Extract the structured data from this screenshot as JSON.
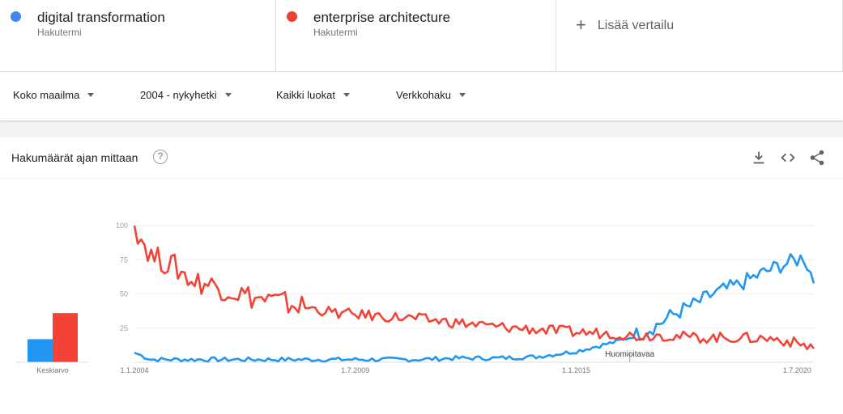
{
  "colors": {
    "series_a": "#4285f4",
    "series_b": "#ea4335",
    "line_a": "#2196f3",
    "line_b": "#f44336",
    "grid": "#eeeeee"
  },
  "terms": [
    {
      "label": "digital transformation",
      "sub": "Hakutermi",
      "color": "#4285f4"
    },
    {
      "label": "enterprise architecture",
      "sub": "Hakutermi",
      "color": "#ea4335"
    }
  ],
  "add_compare": {
    "icon": "plus-icon",
    "label": "Lisää vertailu"
  },
  "filters": [
    {
      "label": "Koko maailma"
    },
    {
      "label": "2004 - nykyhetki"
    },
    {
      "label": "Kaikki luokat"
    },
    {
      "label": "Verkkohaku"
    }
  ],
  "card": {
    "title": "Hakumäärät ajan mittaan",
    "help": "?",
    "actions": [
      "download-icon",
      "embed-icon",
      "share-icon"
    ]
  },
  "chart_data": {
    "type": "line",
    "title": "",
    "xlabel": "",
    "ylabel": "",
    "ylim": [
      0,
      100
    ],
    "y_ticks": [
      "25",
      "50",
      "75",
      "100"
    ],
    "x_ticks": [
      "1.1.2004",
      "1.7.2009",
      "1.1.2015",
      "1.7.2020"
    ],
    "x_range": [
      "2004-01",
      "2020-12"
    ],
    "grid": true,
    "legend": "none",
    "annotation": {
      "label": "Huomioitavaa",
      "at": "2016-05"
    },
    "average": {
      "label": "Keskiarvo",
      "values": [
        15,
        32
      ]
    },
    "series": [
      {
        "name": "digital transformation",
        "yearly_anchors": [
          [
            "2004-01",
            7
          ],
          [
            "2004-06",
            2
          ],
          [
            "2005-01",
            2
          ],
          [
            "2006-01",
            2
          ],
          [
            "2007-01",
            2
          ],
          [
            "2008-01",
            2
          ],
          [
            "2009-01",
            2
          ],
          [
            "2010-01",
            2
          ],
          [
            "2011-01",
            2
          ],
          [
            "2012-01",
            3
          ],
          [
            "2013-01",
            3
          ],
          [
            "2014-01",
            4
          ],
          [
            "2015-01",
            8
          ],
          [
            "2015-06",
            11
          ],
          [
            "2016-01",
            15
          ],
          [
            "2016-06",
            19
          ],
          [
            "2017-01",
            27
          ],
          [
            "2017-06",
            35
          ],
          [
            "2018-01",
            43
          ],
          [
            "2018-06",
            50
          ],
          [
            "2019-01",
            56
          ],
          [
            "2019-06",
            62
          ],
          [
            "2020-01",
            70
          ],
          [
            "2020-06",
            74
          ],
          [
            "2020-09",
            77
          ],
          [
            "2020-12",
            60
          ]
        ]
      },
      {
        "name": "enterprise architecture",
        "yearly_anchors": [
          [
            "2004-01",
            100
          ],
          [
            "2004-06",
            78
          ],
          [
            "2005-01",
            70
          ],
          [
            "2005-06",
            60
          ],
          [
            "2006-01",
            56
          ],
          [
            "2007-01",
            47
          ],
          [
            "2008-01",
            42
          ],
          [
            "2009-01",
            36
          ],
          [
            "2010-01",
            34
          ],
          [
            "2011-01",
            32
          ],
          [
            "2012-01",
            29
          ],
          [
            "2013-01",
            26
          ],
          [
            "2014-01",
            24
          ],
          [
            "2015-01",
            22
          ],
          [
            "2016-01",
            21
          ],
          [
            "2016-06",
            19
          ],
          [
            "2017-01",
            20
          ],
          [
            "2018-01",
            18
          ],
          [
            "2019-01",
            18
          ],
          [
            "2020-01",
            17
          ],
          [
            "2020-12",
            11
          ]
        ]
      }
    ]
  }
}
